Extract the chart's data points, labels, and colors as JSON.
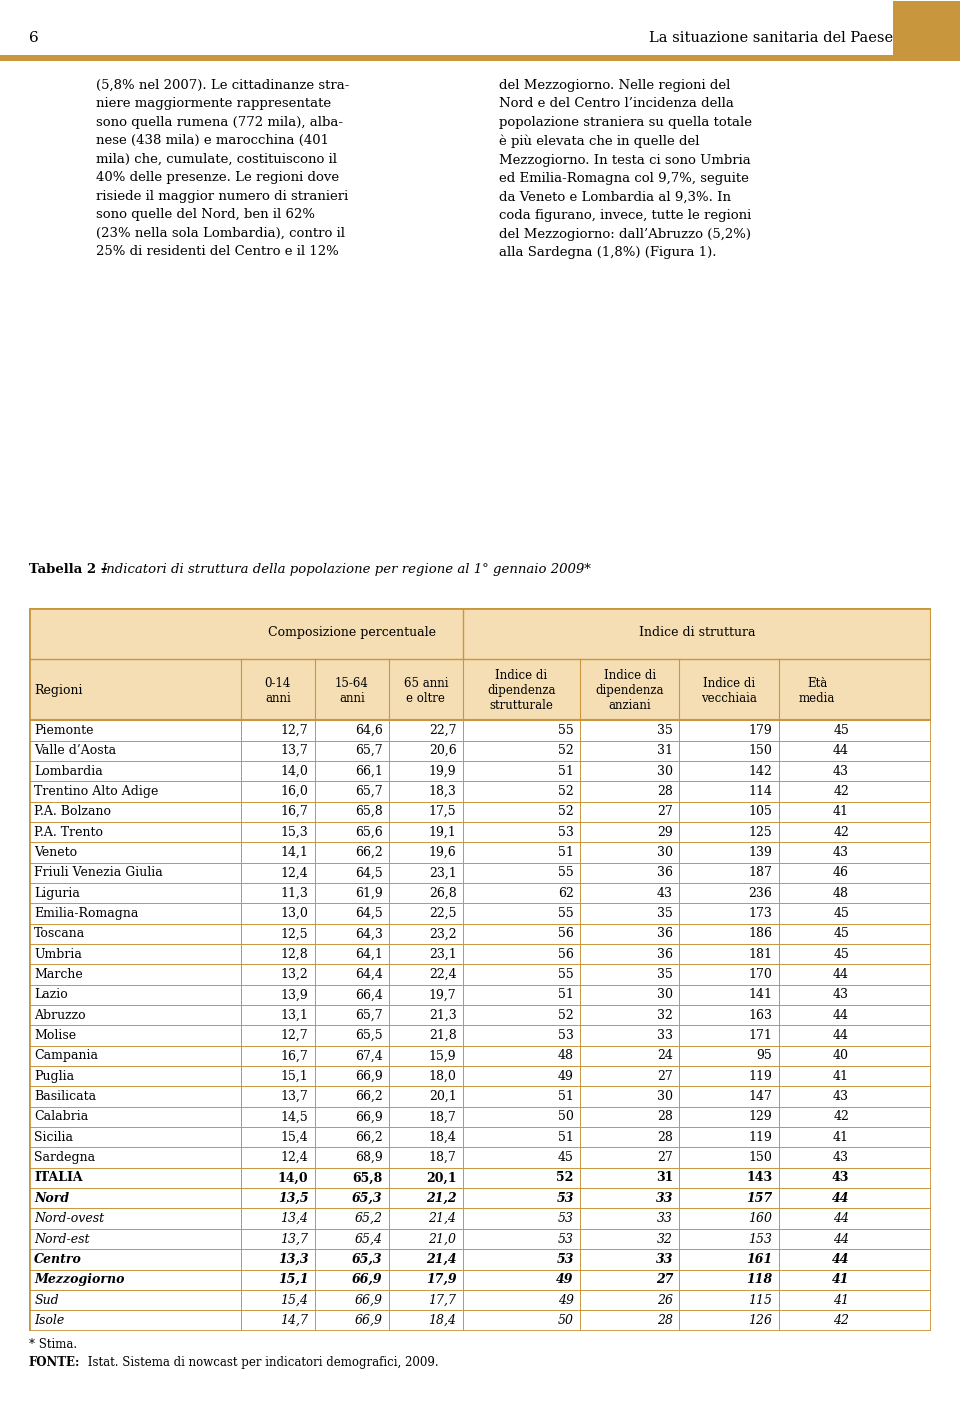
{
  "page_number": "6",
  "header_title": "La situazione sanitaria del Paese",
  "header_color": "#C8963C",
  "body_text_left": "(5,8% nel 2007). Le cittadinanze stra-\nniere maggiormente rappresentate\nsono quella rumena (772 mila), alba-\nnese (438 mila) e marocchina (401\nmila) che, cumulate, costituiscono il\n40% delle presenze. Le regioni dove\nrisiede il maggior numero di stranieri\nsono quelle del Nord, ben il 62%\n(23% nella sola Lombardia), contro il\n25% di residenti del Centro e il 12%",
  "body_text_right": "del Mezzogiorno. Nelle regioni del\nNord e del Centro l’incidenza della\npopolazione straniera su quella totale\nè più elevata che in quelle del\nMezzogiorno. In testa ci sono Umbria\ned Emilia-Romagna col 9,7%, seguite\nda Veneto e Lombardia al 9,3%. In\ncoda figurano, invece, tutte le regioni\ndel Mezzogiorno: dall’Abruzzo (5,2%)\nalla Sardegna (1,8%) (Figura 1).",
  "table_title_prefix": "Tabella 2 – ",
  "table_title": "Indicatori di struttura della popolazione per regione al 1° gennaio 2009*",
  "table_border_color": "#C8963C",
  "table_header_bg": "#F5DEB3",
  "col_header1": "Composizione percentuale",
  "col_header2": "Indice di struttura",
  "sub_headers": [
    "0-14\nanni",
    "15-64\nanni",
    "65 anni\ne oltre",
    "Indice di\ndipendenza\nstrutturale",
    "Indice di\ndipendenza\nanziani",
    "Indice di\nvecchiaia",
    "Età\nmedia"
  ],
  "row_header": "Regioni",
  "rows": [
    [
      "Piemonte",
      "12,7",
      "64,6",
      "22,7",
      "55",
      "35",
      "179",
      "45"
    ],
    [
      "Valle d’Aosta",
      "13,7",
      "65,7",
      "20,6",
      "52",
      "31",
      "150",
      "44"
    ],
    [
      "Lombardia",
      "14,0",
      "66,1",
      "19,9",
      "51",
      "30",
      "142",
      "43"
    ],
    [
      "Trentino Alto Adige",
      "16,0",
      "65,7",
      "18,3",
      "52",
      "28",
      "114",
      "42"
    ],
    [
      "P.A. Bolzano",
      "16,7",
      "65,8",
      "17,5",
      "52",
      "27",
      "105",
      "41"
    ],
    [
      "P.A. Trento",
      "15,3",
      "65,6",
      "19,1",
      "53",
      "29",
      "125",
      "42"
    ],
    [
      "Veneto",
      "14,1",
      "66,2",
      "19,6",
      "51",
      "30",
      "139",
      "43"
    ],
    [
      "Friuli Venezia Giulia",
      "12,4",
      "64,5",
      "23,1",
      "55",
      "36",
      "187",
      "46"
    ],
    [
      "Liguria",
      "11,3",
      "61,9",
      "26,8",
      "62",
      "43",
      "236",
      "48"
    ],
    [
      "Emilia-Romagna",
      "13,0",
      "64,5",
      "22,5",
      "55",
      "35",
      "173",
      "45"
    ],
    [
      "Toscana",
      "12,5",
      "64,3",
      "23,2",
      "56",
      "36",
      "186",
      "45"
    ],
    [
      "Umbria",
      "12,8",
      "64,1",
      "23,1",
      "56",
      "36",
      "181",
      "45"
    ],
    [
      "Marche",
      "13,2",
      "64,4",
      "22,4",
      "55",
      "35",
      "170",
      "44"
    ],
    [
      "Lazio",
      "13,9",
      "66,4",
      "19,7",
      "51",
      "30",
      "141",
      "43"
    ],
    [
      "Abruzzo",
      "13,1",
      "65,7",
      "21,3",
      "52",
      "32",
      "163",
      "44"
    ],
    [
      "Molise",
      "12,7",
      "65,5",
      "21,8",
      "53",
      "33",
      "171",
      "44"
    ],
    [
      "Campania",
      "16,7",
      "67,4",
      "15,9",
      "48",
      "24",
      "95",
      "40"
    ],
    [
      "Puglia",
      "15,1",
      "66,9",
      "18,0",
      "49",
      "27",
      "119",
      "41"
    ],
    [
      "Basilicata",
      "13,7",
      "66,2",
      "20,1",
      "51",
      "30",
      "147",
      "43"
    ],
    [
      "Calabria",
      "14,5",
      "66,9",
      "18,7",
      "50",
      "28",
      "129",
      "42"
    ],
    [
      "Sicilia",
      "15,4",
      "66,2",
      "18,4",
      "51",
      "28",
      "119",
      "41"
    ],
    [
      "Sardegna",
      "12,4",
      "68,9",
      "18,7",
      "45",
      "27",
      "150",
      "43"
    ],
    [
      "ITALIA",
      "14,0",
      "65,8",
      "20,1",
      "52",
      "31",
      "143",
      "43"
    ],
    [
      "Nord",
      "13,5",
      "65,3",
      "21,2",
      "53",
      "33",
      "157",
      "44"
    ],
    [
      "Nord-ovest",
      "13,4",
      "65,2",
      "21,4",
      "53",
      "33",
      "160",
      "44"
    ],
    [
      "Nord-est",
      "13,7",
      "65,4",
      "21,0",
      "53",
      "32",
      "153",
      "44"
    ],
    [
      "Centro",
      "13,3",
      "65,3",
      "21,4",
      "53",
      "33",
      "161",
      "44"
    ],
    [
      "Mezzogiorno",
      "15,1",
      "66,9",
      "17,9",
      "49",
      "27",
      "118",
      "41"
    ],
    [
      "Sud",
      "15,4",
      "66,9",
      "17,7",
      "49",
      "26",
      "115",
      "41"
    ],
    [
      "Isole",
      "14,7",
      "66,9",
      "18,4",
      "50",
      "28",
      "126",
      "42"
    ]
  ],
  "italic_rows": [
    "Nord",
    "Nord-ovest",
    "Nord-est",
    "Centro",
    "Mezzogiorno",
    "Sud",
    "Isole"
  ],
  "bold_rows": [
    "ITALIA",
    "Nord",
    "Centro",
    "Mezzogiorno"
  ],
  "footnote1": "* Stima.",
  "footnote2_bold": "FONTE:",
  "footnote2_rest": " Istat. Sistema di nowcast per indicatori demografici, 2009."
}
